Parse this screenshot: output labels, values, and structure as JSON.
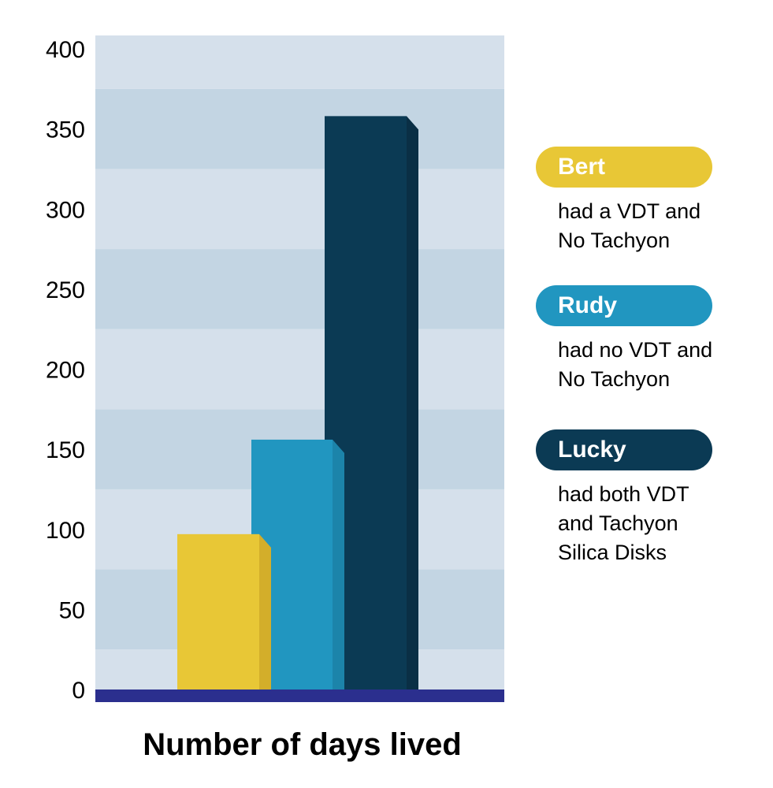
{
  "chart_data": {
    "type": "bar",
    "title": "",
    "xlabel": "Number of days lived",
    "ylabel": "",
    "ylim": [
      0,
      400
    ],
    "yticks": [
      0,
      50,
      100,
      150,
      200,
      250,
      300,
      350,
      400
    ],
    "categories": [
      "Bert",
      "Rudy",
      "Lucky"
    ],
    "values": [
      97,
      156,
      358
    ],
    "legend": [
      {
        "name": "Bert",
        "description": "had a VDT and\nNo Tachyon",
        "color": "#E8C736"
      },
      {
        "name": "Rudy",
        "description": "had no VDT and\nNo Tachyon",
        "color": "#2196C0"
      },
      {
        "name": "Lucky",
        "description": "had both VDT\nand Tachyon\nSilica Disks",
        "color": "#0B3A54"
      }
    ],
    "legend_position": "right",
    "colors": {
      "band_light": "#D5E0EB",
      "band_dark": "#C3D5E3",
      "baseline": "#2B2F8E",
      "bars": [
        "#E8C736",
        "#2196C0",
        "#0B3A54"
      ],
      "bar_sides": [
        "#D3AE2A",
        "#1C84AA",
        "#0A2F45"
      ]
    }
  }
}
